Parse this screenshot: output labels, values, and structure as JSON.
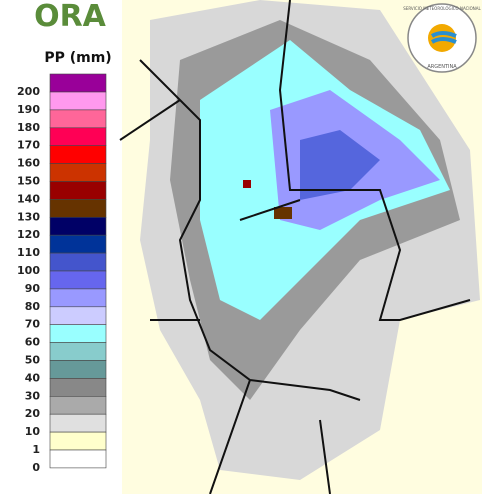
{
  "logo": {
    "text": "ORA"
  },
  "agency": {
    "name": "SERVICIO METEOROLÓGICO NACIONAL",
    "country": "ARGENTINA"
  },
  "legend": {
    "title": "PP (mm)",
    "labels": [
      "200",
      "190",
      "180",
      "170",
      "160",
      "150",
      "140",
      "130",
      "120",
      "110",
      "100",
      "90",
      "80",
      "70",
      "60",
      "50",
      "40",
      "30",
      "20",
      "10",
      "1",
      "0"
    ],
    "colors": [
      "#990099",
      "#ff99ee",
      "#ff6699",
      "#ff0055",
      "#ff0000",
      "#cc3300",
      "#990000",
      "#663300",
      "#000066",
      "#003399",
      "#4455cc",
      "#6666ee",
      "#9999ff",
      "#ccccff",
      "#99ffff",
      "#88cccc",
      "#669999",
      "#888888",
      "#aaaaaa",
      "#e0e0e0",
      "#ffffcc",
      "#ffffff"
    ]
  }
}
